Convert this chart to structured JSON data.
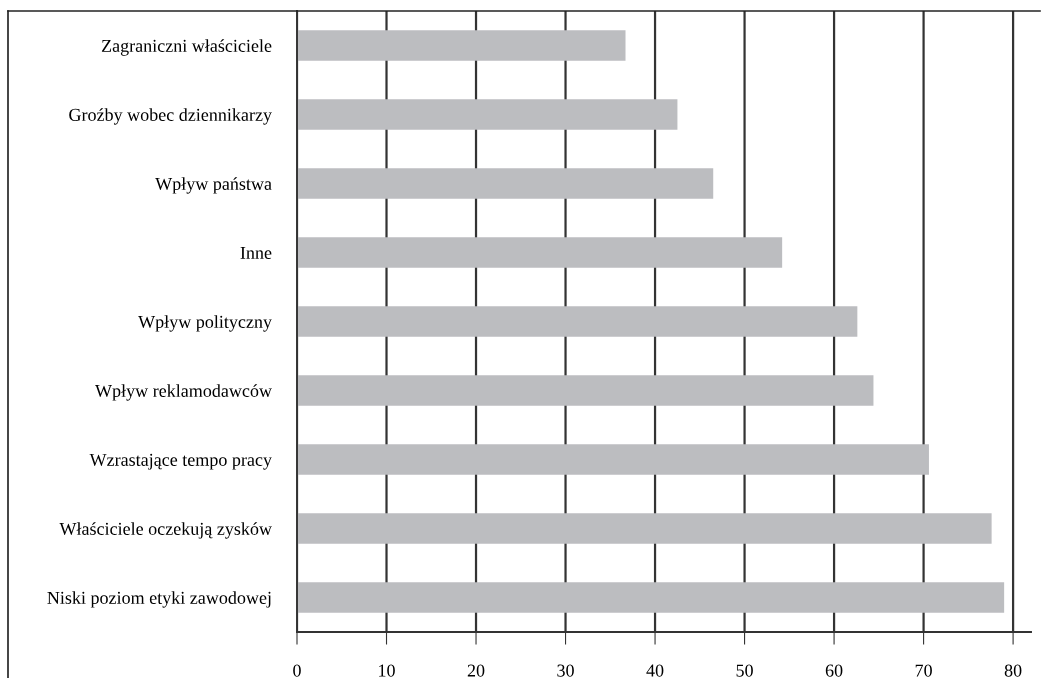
{
  "chart_data": {
    "type": "bar",
    "orientation": "horizontal",
    "categories": [
      "Zagraniczni właściciele",
      "Groźby wobec dziennikarzy",
      "Wpływ państwa",
      "Inne",
      "Wpływ polityczny",
      "Wpływ reklamodawców",
      "Wzrastające tempo pracy",
      "Właściciele oczekują zysków",
      "Niski poziom etyki zawodowej"
    ],
    "values": [
      36.7,
      42.5,
      46.5,
      54.2,
      62.6,
      64.4,
      70.6,
      77.6,
      79.0
    ],
    "color": "#bcbdc0",
    "xlim": [
      0,
      82
    ],
    "xticks": [
      0,
      10,
      20,
      30,
      40,
      50,
      60,
      70,
      80
    ],
    "grid": "x",
    "legend": false
  }
}
